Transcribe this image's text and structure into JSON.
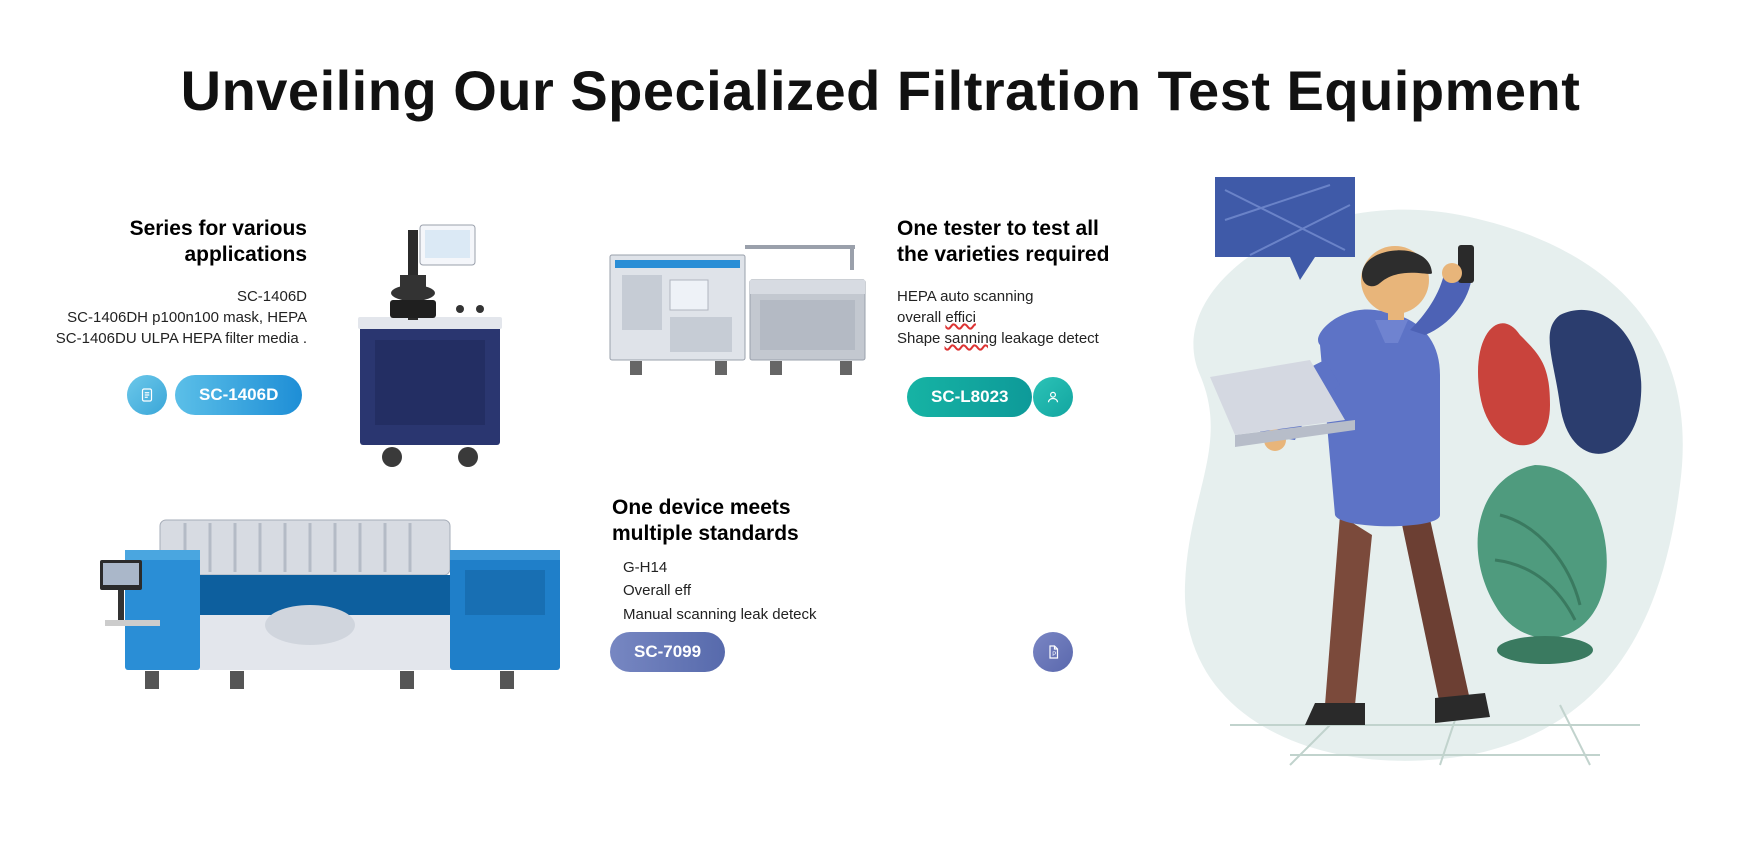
{
  "title": "Unveiling Our Specialized Filtration Test Equipment",
  "blocks": {
    "series": {
      "title": "Series for various applications",
      "descLines": [
        "SC-1406D",
        "SC-1406DH p100n100 mask, HEPA",
        "SC-1406DU   ULPA HEPA  filter media ."
      ],
      "button": "SC-1406D",
      "buttonColor": "#2f9fdc",
      "iconName": "document-lines-icon"
    },
    "tester": {
      "title": "One tester to test all the varieties required",
      "descLines": [
        "HEPA auto scanning",
        " overall <wavy>effici</wavy>",
        "Shape <wavy>sanning</wavy> leakage detect"
      ],
      "button": "SC-L8023",
      "buttonColor": "#12a5a0",
      "iconName": "person-icon"
    },
    "device": {
      "title": "One device meets multiple standards",
      "descLines": [
        "G-H14",
        "Overall eff",
        "Manual scanning leak deteck"
      ],
      "button": "SC-7099",
      "buttonColor": "#5e6eb0",
      "iconName": "page-p-icon"
    }
  },
  "colors": {
    "text": "#111111",
    "machineNavy": "#2a3670",
    "machineSteel": "#b9bec6",
    "machineBlue": "#2a8ed6",
    "illusBg": "#e6efee",
    "illusShirt": "#5d73c6",
    "illusPants": "#7b4a3b",
    "illusSkin": "#e8b57a",
    "illusLaptop": "#cfd3dc",
    "illusLeafRed": "#c9433c",
    "illusLeafBlueDark": "#2b3d6e",
    "illusVase": "#4f9b7e",
    "illusFloor": "#d3e2de",
    "speechBubble": "#3f5aa8"
  }
}
